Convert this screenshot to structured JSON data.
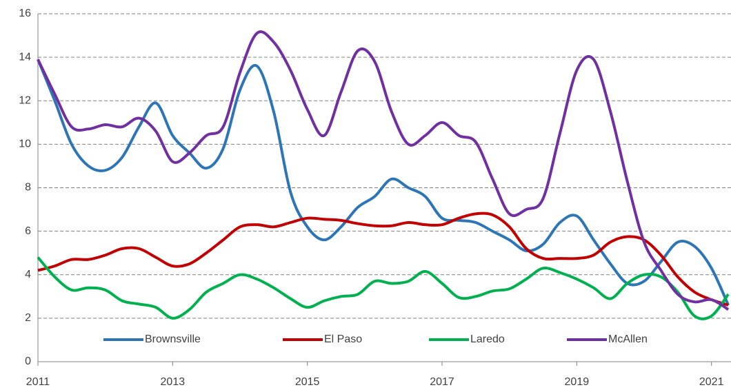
{
  "chart_data": {
    "type": "line",
    "x": [
      2011,
      2011.25,
      2011.5,
      2011.75,
      2012,
      2012.25,
      2012.5,
      2012.75,
      2013,
      2013.25,
      2013.5,
      2013.75,
      2014,
      2014.25,
      2014.5,
      2014.75,
      2015,
      2015.25,
      2015.5,
      2015.75,
      2016,
      2016.25,
      2016.5,
      2016.75,
      2017,
      2017.25,
      2017.5,
      2017.75,
      2018,
      2018.25,
      2018.5,
      2018.75,
      2019,
      2019.25,
      2019.5,
      2019.75,
      2020,
      2020.25,
      2020.5,
      2020.75,
      2021,
      2021.25
    ],
    "series": [
      {
        "name": "Brownsville",
        "color": "#2e75b6",
        "values": [
          13.9,
          12.0,
          10.0,
          9.0,
          8.8,
          9.4,
          10.8,
          11.9,
          10.4,
          9.6,
          8.9,
          9.8,
          12.5,
          13.6,
          11.5,
          7.8,
          6.2,
          5.6,
          6.2,
          7.1,
          7.6,
          8.4,
          8.0,
          7.6,
          6.6,
          6.5,
          6.4,
          6.0,
          5.6,
          5.1,
          5.4,
          6.4,
          6.7,
          5.6,
          4.5,
          3.6,
          3.7,
          4.6,
          5.5,
          5.3,
          4.3,
          2.6
        ]
      },
      {
        "name": "El Paso",
        "color": "#c00000",
        "values": [
          4.2,
          4.4,
          4.7,
          4.7,
          4.9,
          5.2,
          5.2,
          4.8,
          4.4,
          4.5,
          5.0,
          5.6,
          6.2,
          6.3,
          6.2,
          6.4,
          6.6,
          6.55,
          6.5,
          6.35,
          6.25,
          6.25,
          6.4,
          6.3,
          6.3,
          6.6,
          6.8,
          6.75,
          6.2,
          5.2,
          4.75,
          4.75,
          4.75,
          4.9,
          5.5,
          5.75,
          5.6,
          4.9,
          3.9,
          3.2,
          2.85,
          2.6
        ]
      },
      {
        "name": "Laredo",
        "color": "#00b050",
        "values": [
          4.8,
          3.9,
          3.3,
          3.4,
          3.3,
          2.8,
          2.65,
          2.5,
          2.0,
          2.4,
          3.2,
          3.6,
          4.0,
          3.8,
          3.4,
          2.9,
          2.5,
          2.8,
          3.0,
          3.1,
          3.7,
          3.6,
          3.7,
          4.15,
          3.6,
          2.95,
          3.0,
          3.25,
          3.35,
          3.8,
          4.3,
          4.1,
          3.8,
          3.4,
          2.9,
          3.6,
          4.0,
          3.9,
          3.2,
          2.1,
          2.1,
          3.1
        ]
      },
      {
        "name": "McAllen",
        "color": "#7030a0",
        "values": [
          13.9,
          12.3,
          10.8,
          10.7,
          10.9,
          10.8,
          11.2,
          10.6,
          9.2,
          9.6,
          10.4,
          10.8,
          13.3,
          15.1,
          14.7,
          13.4,
          11.6,
          10.4,
          12.4,
          14.3,
          13.8,
          11.5,
          10.0,
          10.4,
          11.0,
          10.4,
          10.1,
          8.4,
          6.8,
          7.0,
          7.5,
          10.5,
          13.4,
          13.9,
          11.5,
          8.3,
          5.5,
          4.2,
          3.1,
          2.75,
          2.85,
          2.4
        ]
      }
    ],
    "xlim": [
      2011,
      2021.29
    ],
    "xticks": [
      2011,
      2013,
      2015,
      2017,
      2019,
      2021
    ],
    "ylim": [
      0,
      16
    ],
    "yticks": [
      0,
      2,
      4,
      6,
      8,
      10,
      12,
      14,
      16
    ],
    "grid": true
  }
}
